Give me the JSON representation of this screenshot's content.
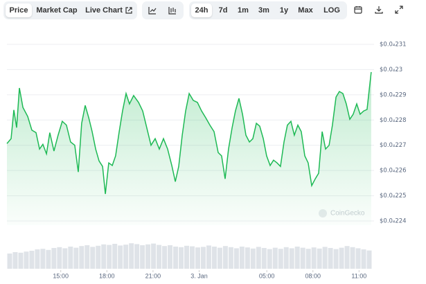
{
  "toolbar": {
    "views": [
      "Price",
      "Market Cap",
      "Live Chart"
    ],
    "ranges": [
      "24h",
      "7d",
      "1m",
      "3m",
      "1y",
      "Max",
      "LOG"
    ]
  },
  "chart_data": {
    "type": "line",
    "watermark": "CoinGecko",
    "xlim": [
      11.5,
      35.24
    ],
    "xticks": [
      {
        "value": 15,
        "label": "15:00"
      },
      {
        "value": 18,
        "label": "18:00"
      },
      {
        "value": 21,
        "label": "21:00"
      },
      {
        "value": 24,
        "label": "3. Jan"
      },
      {
        "value": 28.4,
        "label": "05:00"
      },
      {
        "value": 31.4,
        "label": "08:00"
      },
      {
        "value": 34.4,
        "label": "11:00"
      }
    ],
    "ylim": [
      2.24e-05,
      2.31e-05
    ],
    "yticks": [
      {
        "value": 2.24e-05,
        "label": "$0.0₄224"
      },
      {
        "value": 2.25e-05,
        "label": "$0.0₄225"
      },
      {
        "value": 2.26e-05,
        "label": "$0.0₄226"
      },
      {
        "value": 2.27e-05,
        "label": "$0.0₄227"
      },
      {
        "value": 2.28e-05,
        "label": "$0.0₄228"
      },
      {
        "value": 2.29e-05,
        "label": "$0.0₄229"
      },
      {
        "value": 2.3e-05,
        "label": "$0.0₄23"
      },
      {
        "value": 2.31e-05,
        "label": "$0.0₄231"
      }
    ],
    "grid": true,
    "series": [
      {
        "color": "#1db954",
        "x": [
          11.5,
          11.77,
          11.95,
          12.13,
          12.31,
          12.54,
          12.85,
          13.12,
          13.39,
          13.62,
          13.84,
          14.07,
          14.29,
          14.56,
          14.83,
          15.1,
          15.37,
          15.64,
          15.91,
          16.14,
          16.36,
          16.59,
          16.82,
          17.04,
          17.27,
          17.49,
          17.72,
          17.9,
          18.12,
          18.35,
          18.57,
          18.8,
          19.02,
          19.25,
          19.47,
          19.74,
          20.06,
          20.33,
          20.6,
          20.87,
          21.14,
          21.41,
          21.68,
          21.95,
          22.22,
          22.45,
          22.67,
          22.9,
          23.12,
          23.35,
          23.62,
          23.89,
          24.16,
          24.43,
          24.7,
          24.97,
          25.24,
          25.46,
          25.69,
          25.91,
          26.14,
          26.36,
          26.59,
          26.82,
          27.04,
          27.27,
          27.49,
          27.72,
          27.94,
          28.17,
          28.39,
          28.62,
          28.84,
          29.07,
          29.29,
          29.52,
          29.74,
          29.97,
          30.19,
          30.42,
          30.64,
          30.87,
          31.09,
          31.32,
          31.55,
          31.77,
          32.0,
          32.22,
          32.45,
          32.67,
          32.9,
          33.12,
          33.35,
          33.57,
          33.8,
          34.02,
          34.25,
          34.47,
          34.7,
          34.92,
          35.06,
          35.19
        ],
        "values": [
          2.2707e-05,
          2.2726e-05,
          2.284e-05,
          2.277e-05,
          2.2927e-05,
          2.285e-05,
          2.2814e-05,
          2.276e-05,
          2.275e-05,
          2.2685e-05,
          2.2704e-05,
          2.2666e-05,
          2.275e-05,
          2.2677e-05,
          2.274e-05,
          2.2795e-05,
          2.278e-05,
          2.2713e-05,
          2.27e-05,
          2.2594e-05,
          2.2787e-05,
          2.2858e-05,
          2.2809e-05,
          2.2754e-05,
          2.2685e-05,
          2.2638e-05,
          2.2616e-05,
          2.2507e-05,
          2.263e-05,
          2.262e-05,
          2.2658e-05,
          2.2754e-05,
          2.2836e-05,
          2.2905e-05,
          2.2864e-05,
          2.2897e-05,
          2.287e-05,
          2.2836e-05,
          2.2768e-05,
          2.27e-05,
          2.2726e-05,
          2.2685e-05,
          2.2726e-05,
          2.2685e-05,
          2.262e-05,
          2.2556e-05,
          2.2616e-05,
          2.274e-05,
          2.2836e-05,
          2.2905e-05,
          2.2878e-05,
          2.287e-05,
          2.2836e-05,
          2.2809e-05,
          2.278e-05,
          2.2754e-05,
          2.2671e-05,
          2.2658e-05,
          2.2567e-05,
          2.2685e-05,
          2.2768e-05,
          2.2836e-05,
          2.2886e-05,
          2.2823e-05,
          2.274e-05,
          2.2713e-05,
          2.2726e-05,
          2.2787e-05,
          2.2776e-05,
          2.2726e-05,
          2.2658e-05,
          2.262e-05,
          2.2641e-05,
          2.263e-05,
          2.2616e-05,
          2.2713e-05,
          2.278e-05,
          2.2795e-05,
          2.274e-05,
          2.278e-05,
          2.2754e-05,
          2.2658e-05,
          2.263e-05,
          2.254e-05,
          2.2567e-05,
          2.2589e-05,
          2.2754e-05,
          2.2685e-05,
          2.27e-05,
          2.278e-05,
          2.2891e-05,
          2.2913e-05,
          2.2905e-05,
          2.2864e-05,
          2.2803e-05,
          2.2823e-05,
          2.2864e-05,
          2.2823e-05,
          2.2836e-05,
          2.2842e-05,
          2.2919e-05,
          2.299e-05
        ]
      }
    ],
    "volume": [
      55,
      60,
      58,
      62,
      65,
      70,
      72,
      68,
      75,
      78,
      74,
      80,
      76,
      82,
      85,
      79,
      83,
      88,
      86,
      90,
      84,
      87,
      92,
      89,
      85,
      88,
      91,
      86,
      82,
      85,
      80,
      78,
      83,
      81,
      77,
      79,
      84,
      80,
      76,
      82,
      78,
      74,
      80,
      77,
      73,
      79,
      75,
      71,
      76,
      72,
      78,
      74,
      80,
      76,
      72,
      77,
      73,
      79,
      75,
      71,
      76,
      82,
      78,
      74,
      70,
      66
    ]
  }
}
